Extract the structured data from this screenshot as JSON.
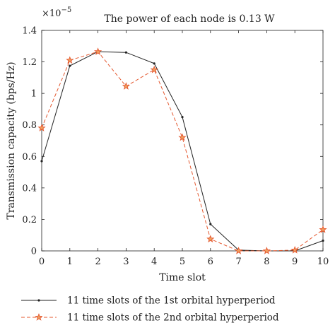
{
  "chart_data": {
    "type": "line",
    "title": "The power of each node is 0.13 W",
    "exponent_label": "×10",
    "exponent_power": "−5",
    "xlabel": "Time slot",
    "ylabel": "Transmission capacity (bps/Hz)",
    "xlim": [
      0,
      10
    ],
    "ylim": [
      0,
      1.4
    ],
    "x_ticks": [
      0,
      1,
      2,
      3,
      4,
      5,
      6,
      7,
      8,
      9,
      10
    ],
    "x_tick_labels": [
      "0",
      "1",
      "2",
      "3",
      "4",
      "5",
      "6",
      "7",
      "8",
      "9",
      "10"
    ],
    "y_ticks": [
      0,
      0.2,
      0.4,
      0.6,
      0.8,
      1.0,
      1.2,
      1.4
    ],
    "y_tick_labels": [
      "0",
      "0.2",
      "0.4",
      "0.6",
      "0.8",
      "1",
      "1.2",
      "1.4"
    ],
    "grid": false,
    "legend_position": "below",
    "x": [
      0,
      1,
      2,
      3,
      4,
      5,
      6,
      7,
      8,
      9,
      10
    ],
    "series": [
      {
        "name": "11 time slots of the 1st orbital hyperperiod",
        "values": [
          0.57,
          1.175,
          1.265,
          1.26,
          1.19,
          0.85,
          0.17,
          0.005,
          0.0,
          0.0,
          0.065
        ],
        "color": "#222222",
        "line_style": "solid",
        "marker": "dot"
      },
      {
        "name": "11 time slots of the 2nd orbital hyperperiod",
        "values": [
          0.78,
          1.21,
          1.265,
          1.045,
          1.15,
          0.72,
          0.075,
          0.0,
          0.0,
          0.005,
          0.135
        ],
        "color": "#e4572e",
        "line_style": "dashed",
        "marker": "star"
      }
    ]
  }
}
